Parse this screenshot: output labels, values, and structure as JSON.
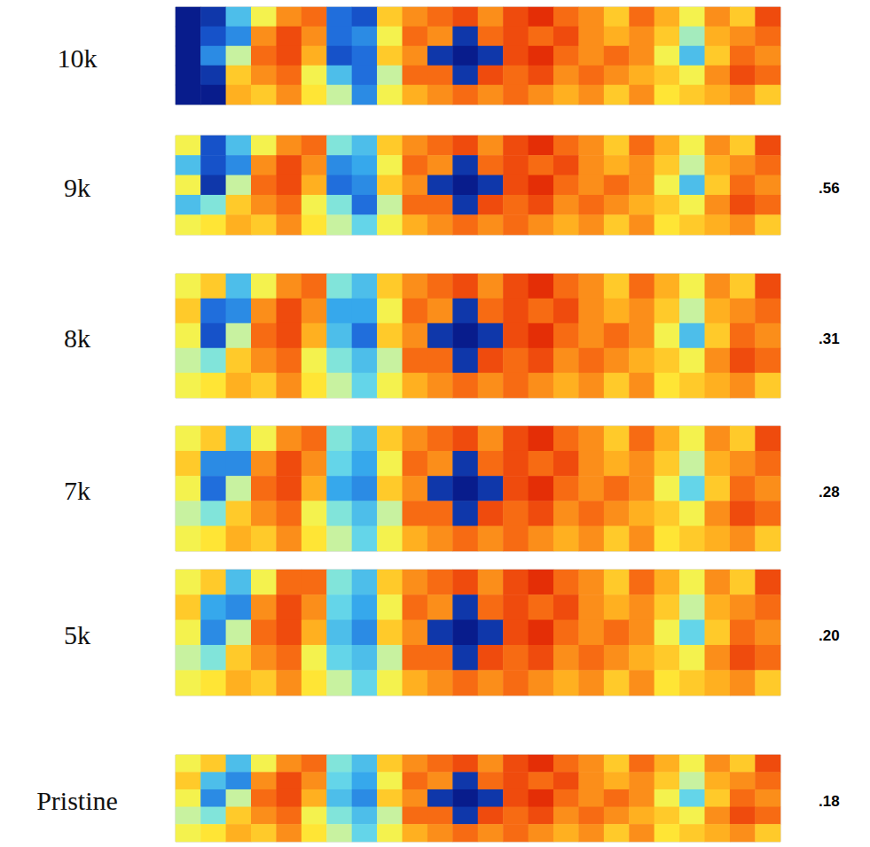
{
  "chart_data": [
    {
      "type": "heatmap",
      "title": "10k",
      "zlim": [
        0,
        1
      ],
      "tick_labels": false,
      "cells": [
        [
          -0.1,
          0.05,
          0.3,
          0.6,
          0.8,
          0.85,
          0.15,
          0.1,
          0.7,
          0.8,
          0.85,
          0.9,
          0.8,
          0.9,
          0.95,
          0.85,
          0.8,
          0.7,
          0.85,
          0.75,
          0.6,
          0.8,
          0.7,
          0.9
        ],
        [
          -0.1,
          0.1,
          0.2,
          0.8,
          0.9,
          0.8,
          0.15,
          0.2,
          0.6,
          0.85,
          0.8,
          0.05,
          0.85,
          0.9,
          0.85,
          0.9,
          0.8,
          0.75,
          0.8,
          0.7,
          0.45,
          0.75,
          0.8,
          0.85
        ],
        [
          -0.1,
          0.2,
          0.5,
          0.85,
          0.9,
          0.75,
          0.1,
          0.15,
          0.7,
          0.8,
          0.05,
          -0.1,
          0.05,
          0.9,
          0.95,
          0.85,
          0.8,
          0.85,
          0.8,
          0.6,
          0.3,
          0.7,
          0.85,
          0.8
        ],
        [
          -0.1,
          0.05,
          0.7,
          0.8,
          0.85,
          0.6,
          0.3,
          0.15,
          0.5,
          0.85,
          0.85,
          0.05,
          0.9,
          0.85,
          0.9,
          0.8,
          0.85,
          0.8,
          0.75,
          0.7,
          0.6,
          0.8,
          0.9,
          0.85
        ],
        [
          -0.1,
          -0.1,
          0.75,
          0.7,
          0.8,
          0.65,
          0.5,
          0.2,
          0.6,
          0.75,
          0.8,
          0.85,
          0.8,
          0.85,
          0.8,
          0.75,
          0.8,
          0.7,
          0.8,
          0.65,
          0.7,
          0.75,
          0.8,
          0.7
        ]
      ]
    },
    {
      "type": "heatmap",
      "title": "9k",
      "annotation": {
        "value": 0.56,
        "label": ".56"
      },
      "zlim": [
        0,
        1
      ],
      "tick_labels": false,
      "cells": [
        [
          0.6,
          0.1,
          0.3,
          0.6,
          0.8,
          0.85,
          0.4,
          0.3,
          0.7,
          0.8,
          0.85,
          0.9,
          0.8,
          0.9,
          0.95,
          0.85,
          0.8,
          0.7,
          0.85,
          0.75,
          0.6,
          0.8,
          0.7,
          0.9
        ],
        [
          0.3,
          0.1,
          0.2,
          0.8,
          0.9,
          0.8,
          0.2,
          0.25,
          0.6,
          0.85,
          0.8,
          0.05,
          0.85,
          0.9,
          0.85,
          0.9,
          0.8,
          0.75,
          0.8,
          0.7,
          0.5,
          0.75,
          0.8,
          0.85
        ],
        [
          0.6,
          0.05,
          0.5,
          0.85,
          0.9,
          0.75,
          0.15,
          0.2,
          0.7,
          0.8,
          0.05,
          -0.1,
          0.05,
          0.9,
          0.95,
          0.85,
          0.8,
          0.85,
          0.8,
          0.6,
          0.3,
          0.7,
          0.85,
          0.8
        ],
        [
          0.3,
          0.4,
          0.7,
          0.8,
          0.85,
          0.6,
          0.4,
          0.15,
          0.5,
          0.85,
          0.85,
          0.05,
          0.9,
          0.85,
          0.9,
          0.8,
          0.85,
          0.8,
          0.75,
          0.7,
          0.6,
          0.8,
          0.9,
          0.85
        ],
        [
          0.6,
          0.65,
          0.75,
          0.7,
          0.8,
          0.65,
          0.5,
          0.35,
          0.6,
          0.75,
          0.8,
          0.85,
          0.8,
          0.85,
          0.8,
          0.75,
          0.8,
          0.7,
          0.8,
          0.65,
          0.7,
          0.75,
          0.8,
          0.7
        ]
      ]
    },
    {
      "type": "heatmap",
      "title": "8k",
      "annotation": {
        "value": 0.31,
        "label": ".31"
      },
      "zlim": [
        0,
        1
      ],
      "tick_labels": false,
      "cells": [
        [
          0.6,
          0.7,
          0.3,
          0.6,
          0.8,
          0.85,
          0.4,
          0.3,
          0.7,
          0.8,
          0.85,
          0.9,
          0.8,
          0.9,
          0.95,
          0.85,
          0.8,
          0.7,
          0.85,
          0.75,
          0.6,
          0.8,
          0.7,
          0.9
        ],
        [
          0.7,
          0.15,
          0.2,
          0.8,
          0.9,
          0.8,
          0.25,
          0.25,
          0.6,
          0.85,
          0.8,
          0.05,
          0.85,
          0.9,
          0.85,
          0.9,
          0.8,
          0.75,
          0.8,
          0.7,
          0.5,
          0.75,
          0.8,
          0.85
        ],
        [
          0.6,
          0.1,
          0.5,
          0.85,
          0.9,
          0.75,
          0.3,
          0.15,
          0.7,
          0.8,
          0.05,
          -0.1,
          0.05,
          0.9,
          0.95,
          0.85,
          0.8,
          0.85,
          0.8,
          0.6,
          0.3,
          0.7,
          0.85,
          0.8
        ],
        [
          0.5,
          0.4,
          0.7,
          0.8,
          0.85,
          0.6,
          0.4,
          0.3,
          0.5,
          0.85,
          0.85,
          0.05,
          0.9,
          0.85,
          0.9,
          0.8,
          0.85,
          0.8,
          0.75,
          0.7,
          0.6,
          0.8,
          0.9,
          0.85
        ],
        [
          0.6,
          0.65,
          0.75,
          0.7,
          0.8,
          0.65,
          0.5,
          0.35,
          0.6,
          0.75,
          0.8,
          0.85,
          0.8,
          0.85,
          0.8,
          0.75,
          0.8,
          0.7,
          0.8,
          0.65,
          0.7,
          0.75,
          0.8,
          0.7
        ]
      ]
    },
    {
      "type": "heatmap",
      "title": "7k",
      "annotation": {
        "value": 0.28,
        "label": ".28"
      },
      "zlim": [
        0,
        1
      ],
      "tick_labels": false,
      "cells": [
        [
          0.6,
          0.7,
          0.3,
          0.6,
          0.8,
          0.85,
          0.4,
          0.3,
          0.7,
          0.8,
          0.85,
          0.9,
          0.8,
          0.9,
          0.95,
          0.85,
          0.8,
          0.7,
          0.85,
          0.75,
          0.6,
          0.8,
          0.7,
          0.9
        ],
        [
          0.7,
          0.2,
          0.2,
          0.8,
          0.9,
          0.8,
          0.35,
          0.25,
          0.6,
          0.85,
          0.8,
          0.05,
          0.85,
          0.9,
          0.85,
          0.9,
          0.8,
          0.75,
          0.8,
          0.7,
          0.5,
          0.75,
          0.8,
          0.85
        ],
        [
          0.6,
          0.15,
          0.5,
          0.85,
          0.9,
          0.75,
          0.25,
          0.2,
          0.7,
          0.8,
          0.05,
          -0.1,
          0.05,
          0.9,
          0.95,
          0.85,
          0.8,
          0.85,
          0.8,
          0.6,
          0.35,
          0.7,
          0.85,
          0.8
        ],
        [
          0.5,
          0.4,
          0.7,
          0.8,
          0.85,
          0.6,
          0.4,
          0.3,
          0.5,
          0.85,
          0.85,
          0.05,
          0.9,
          0.85,
          0.9,
          0.8,
          0.85,
          0.8,
          0.75,
          0.7,
          0.6,
          0.8,
          0.9,
          0.85
        ],
        [
          0.6,
          0.65,
          0.75,
          0.7,
          0.8,
          0.65,
          0.5,
          0.35,
          0.6,
          0.75,
          0.8,
          0.85,
          0.8,
          0.85,
          0.8,
          0.75,
          0.8,
          0.7,
          0.8,
          0.65,
          0.7,
          0.75,
          0.8,
          0.7
        ]
      ]
    },
    {
      "type": "heatmap",
      "title": "5k",
      "annotation": {
        "value": 0.2,
        "label": ".20"
      },
      "zlim": [
        0,
        1
      ],
      "tick_labels": false,
      "cells": [
        [
          0.6,
          0.7,
          0.3,
          0.6,
          0.85,
          0.85,
          0.4,
          0.3,
          0.7,
          0.8,
          0.85,
          0.9,
          0.8,
          0.9,
          0.95,
          0.85,
          0.8,
          0.7,
          0.85,
          0.75,
          0.6,
          0.8,
          0.7,
          0.9
        ],
        [
          0.7,
          0.25,
          0.2,
          0.8,
          0.9,
          0.8,
          0.35,
          0.25,
          0.6,
          0.85,
          0.8,
          0.05,
          0.85,
          0.9,
          0.85,
          0.9,
          0.8,
          0.75,
          0.8,
          0.7,
          0.5,
          0.75,
          0.8,
          0.85
        ],
        [
          0.6,
          0.2,
          0.5,
          0.85,
          0.9,
          0.75,
          0.3,
          0.2,
          0.7,
          0.8,
          0.05,
          -0.1,
          0.05,
          0.9,
          0.95,
          0.85,
          0.8,
          0.85,
          0.8,
          0.6,
          0.35,
          0.7,
          0.85,
          0.8
        ],
        [
          0.5,
          0.4,
          0.7,
          0.8,
          0.85,
          0.6,
          0.35,
          0.3,
          0.5,
          0.85,
          0.85,
          0.05,
          0.9,
          0.85,
          0.9,
          0.8,
          0.85,
          0.8,
          0.75,
          0.7,
          0.6,
          0.8,
          0.9,
          0.85
        ],
        [
          0.6,
          0.65,
          0.75,
          0.7,
          0.8,
          0.65,
          0.5,
          0.35,
          0.6,
          0.75,
          0.8,
          0.85,
          0.8,
          0.85,
          0.8,
          0.75,
          0.8,
          0.7,
          0.8,
          0.65,
          0.7,
          0.75,
          0.8,
          0.7
        ]
      ]
    },
    {
      "type": "heatmap",
      "title": "Pristine",
      "annotation": {
        "value": 0.18,
        "label": ".18"
      },
      "zlim": [
        0,
        1
      ],
      "tick_labels": false,
      "cells": [
        [
          0.6,
          0.7,
          0.3,
          0.6,
          0.8,
          0.85,
          0.4,
          0.3,
          0.7,
          0.8,
          0.85,
          0.9,
          0.8,
          0.9,
          0.95,
          0.85,
          0.8,
          0.7,
          0.85,
          0.75,
          0.6,
          0.8,
          0.7,
          0.9
        ],
        [
          0.7,
          0.3,
          0.2,
          0.8,
          0.9,
          0.8,
          0.35,
          0.25,
          0.6,
          0.85,
          0.8,
          0.05,
          0.85,
          0.9,
          0.85,
          0.9,
          0.8,
          0.75,
          0.8,
          0.7,
          0.5,
          0.75,
          0.8,
          0.85
        ],
        [
          0.6,
          0.2,
          0.5,
          0.85,
          0.9,
          0.75,
          0.3,
          0.2,
          0.7,
          0.8,
          0.05,
          -0.1,
          0.05,
          0.9,
          0.95,
          0.85,
          0.8,
          0.85,
          0.8,
          0.6,
          0.35,
          0.7,
          0.85,
          0.8
        ],
        [
          0.5,
          0.4,
          0.7,
          0.8,
          0.85,
          0.6,
          0.4,
          0.3,
          0.5,
          0.85,
          0.85,
          0.05,
          0.9,
          0.85,
          0.9,
          0.8,
          0.85,
          0.8,
          0.75,
          0.7,
          0.6,
          0.8,
          0.9,
          0.85
        ],
        [
          0.6,
          0.65,
          0.75,
          0.7,
          0.8,
          0.65,
          0.5,
          0.35,
          0.6,
          0.75,
          0.8,
          0.85,
          0.8,
          0.85,
          0.8,
          0.75,
          0.8,
          0.7,
          0.8,
          0.65,
          0.7,
          0.75,
          0.8,
          0.7
        ]
      ]
    }
  ]
}
